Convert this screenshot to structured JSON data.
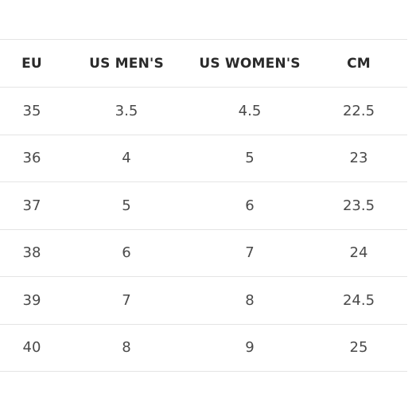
{
  "size_chart": {
    "headers": {
      "eu": "EU",
      "us_men": "US MEN'S",
      "us_women": "US WOMEN'S",
      "cm": "CM"
    },
    "rows": [
      {
        "eu": "35",
        "us_men": "3.5",
        "us_women": "4.5",
        "cm": "22.5"
      },
      {
        "eu": "36",
        "us_men": "4",
        "us_women": "5",
        "cm": "23"
      },
      {
        "eu": "37",
        "us_men": "5",
        "us_women": "6",
        "cm": "23.5"
      },
      {
        "eu": "38",
        "us_men": "6",
        "us_women": "7",
        "cm": "24"
      },
      {
        "eu": "39",
        "us_men": "7",
        "us_women": "8",
        "cm": "24.5"
      },
      {
        "eu": "40",
        "us_men": "8",
        "us_women": "9",
        "cm": "25"
      }
    ]
  },
  "colors": {
    "header_text": "#2a2a2a",
    "cell_text": "#4a4a4a",
    "divider": "#e4e4e4",
    "background": "#ffffff"
  }
}
